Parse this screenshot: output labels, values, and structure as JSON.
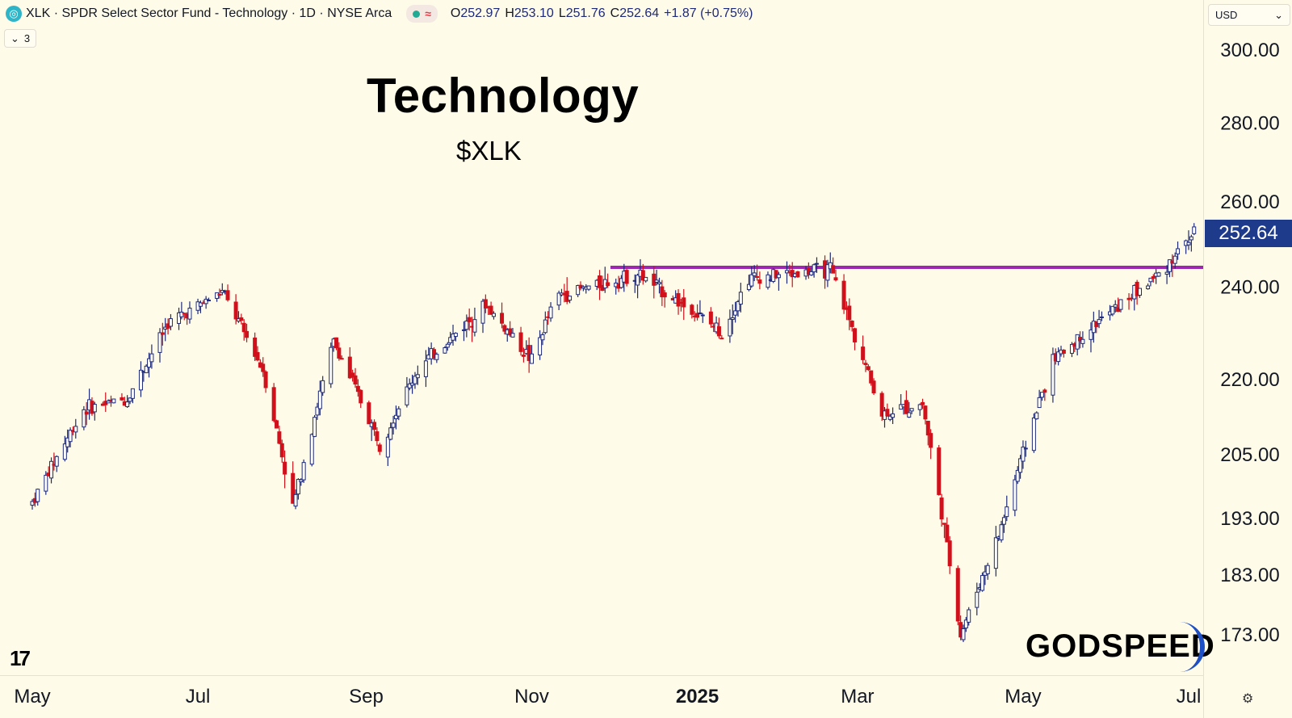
{
  "header": {
    "symbol_title": "XLK · SPDR Select Sector Fund - Technology · 1D · NYSE Arca",
    "ohlc": {
      "o_label": "O",
      "o": "252.97",
      "h_label": "H",
      "h": "253.10",
      "l_label": "L",
      "l": "251.76",
      "c_label": "C",
      "c": "252.64",
      "change": "+1.87 (+0.75%)"
    },
    "collapse_count": "3",
    "currency": "USD",
    "icons": [
      "symbol-logo-icon",
      "status-dot-icon",
      "wave-icon",
      "chevron-down-icon",
      "settings-icon"
    ]
  },
  "colors": {
    "up": "#1e2a78",
    "down": "#d0111b",
    "resistance": "#9c27b0",
    "background": "#fefbe9",
    "badge": "#1e3a8a"
  },
  "chart_data": {
    "type": "candlestick",
    "title": "Technology",
    "subtitle": "$XLK",
    "y_axis": {
      "scale": "log",
      "ticks": [
        173,
        183,
        193,
        205,
        220,
        240,
        260,
        280,
        300
      ],
      "tick_labels": [
        "173.00",
        "183.00",
        "193.00",
        "205.00",
        "220.00",
        "240.00",
        "260.00",
        "280.00",
        "300.00"
      ]
    },
    "x_axis": {
      "tick_labels": [
        "May",
        "Jul",
        "Sep",
        "Nov",
        "2025",
        "Mar",
        "May",
        "Jul"
      ]
    },
    "last_price": "252.64",
    "resistance_level": 244.5,
    "series_path": [
      [
        "2024-05-01",
        196
      ],
      [
        "2024-05-20",
        214
      ],
      [
        "2024-06-05",
        216
      ],
      [
        "2024-06-20",
        232
      ],
      [
        "2024-07-10",
        239
      ],
      [
        "2024-07-25",
        222
      ],
      [
        "2024-08-05",
        195
      ],
      [
        "2024-08-20",
        228
      ],
      [
        "2024-09-06",
        207
      ],
      [
        "2024-09-20",
        222
      ],
      [
        "2024-10-15",
        236
      ],
      [
        "2024-11-01",
        224
      ],
      [
        "2024-11-10",
        238
      ],
      [
        "2024-12-10",
        243
      ],
      [
        "2025-01-10",
        230
      ],
      [
        "2025-01-20",
        242
      ],
      [
        "2025-02-19",
        244
      ],
      [
        "2025-03-10",
        213
      ],
      [
        "2025-03-25",
        215
      ],
      [
        "2025-04-08",
        173
      ],
      [
        "2025-04-22",
        190
      ],
      [
        "2025-05-12",
        224
      ],
      [
        "2025-05-28",
        232
      ],
      [
        "2025-06-20",
        243
      ],
      [
        "2025-07-03",
        252.64
      ]
    ],
    "annotations": [
      "Technology",
      "$XLK",
      "GODSPEED"
    ]
  },
  "branding": {
    "tv_logo": "17",
    "brand": "GODSPEED"
  }
}
